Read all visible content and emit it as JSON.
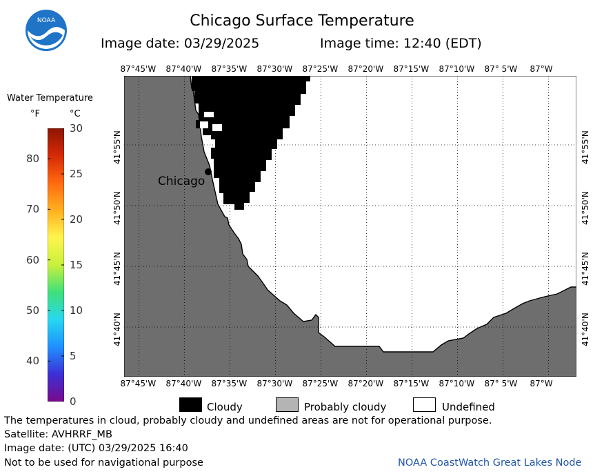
{
  "header": {
    "title": "Chicago Surface Temperature",
    "image_date": "Image date: 03/29/2025",
    "image_time": "Image time: 12:40 (EDT)"
  },
  "logo": {
    "text": "NOAA",
    "icon": "noaa-logo-icon"
  },
  "colorbar": {
    "title": "Water Temperature",
    "unit_f": "°F",
    "unit_c": "°C",
    "f_ticks": [
      {
        "label": "80",
        "value_f": 80
      },
      {
        "label": "70",
        "value_f": 70
      },
      {
        "label": "60",
        "value_f": 60
      },
      {
        "label": "50",
        "value_f": 50
      },
      {
        "label": "40",
        "value_f": 40
      }
    ],
    "c_ticks": [
      {
        "label": "30",
        "value_c": 30
      },
      {
        "label": "25",
        "value_c": 25
      },
      {
        "label": "20",
        "value_c": 20
      },
      {
        "label": "15",
        "value_c": 15
      },
      {
        "label": "10",
        "value_c": 10
      },
      {
        "label": "5",
        "value_c": 5
      },
      {
        "label": "0",
        "value_c": 0
      }
    ],
    "c_range": [
      0,
      30
    ],
    "colors": [
      "#7a0a8c",
      "#3d2fd6",
      "#1e90ff",
      "#28d7f0",
      "#3fe07a",
      "#c8f03c",
      "#fff44f",
      "#ffb020",
      "#ff6a10",
      "#d62a06",
      "#8c1404"
    ]
  },
  "map": {
    "lon_labels": [
      "87°45'W",
      "87°40'W",
      "87°35'W",
      "87°30'W",
      "87°25'W",
      "87°20'W",
      "87°15'W",
      "87°10'W",
      "87° 5'W",
      "87°W"
    ],
    "lat_labels": [
      "41°55'N",
      "41°50'N",
      "41°45'N",
      "41°40'N"
    ],
    "land_color": "#6e6e6e",
    "cloud_color": "#000000",
    "city": {
      "name": "Chicago"
    }
  },
  "map_legend": [
    {
      "label": "Cloudy",
      "color": "#000000"
    },
    {
      "label": "Probably cloudy",
      "color": "#b4b4b4"
    },
    {
      "label": "Undefined",
      "color": "#ffffff"
    }
  ],
  "footer": {
    "disclaimer": "The temperatures in cloud, probably cloudy and undefined areas are not for operational purpose.",
    "satellite": "Satellite: AVHRRF_MB",
    "utc_date": "Image date: (UTC) 03/29/2025  16:40",
    "navigation": "Not to be used for navigational purpose",
    "credit": "NOAA CoastWatch Great Lakes Node"
  }
}
